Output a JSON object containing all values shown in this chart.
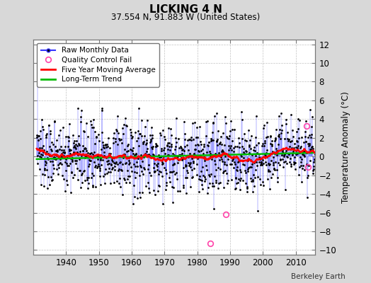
{
  "title": "LICKING 4 N",
  "subtitle": "37.554 N, 91.883 W (United States)",
  "ylabel": "Temperature Anomaly (°C)",
  "credit": "Berkeley Earth",
  "ylim": [
    -10.5,
    12.5
  ],
  "yticks": [
    -10,
    -8,
    -6,
    -4,
    -2,
    0,
    2,
    4,
    6,
    8,
    10,
    12
  ],
  "xlim": [
    1930,
    2016
  ],
  "xticks": [
    1940,
    1950,
    1960,
    1970,
    1980,
    1990,
    2000,
    2010
  ],
  "bg_color": "#d8d8d8",
  "plot_bg_color": "#ffffff",
  "raw_line_color": "#3333ff",
  "raw_dot_color": "#000000",
  "qc_color": "#ff44aa",
  "ma_color": "#ff0000",
  "trend_color": "#00bb00",
  "seed": 137,
  "start_year": 1931,
  "end_year": 2015,
  "noise_std": 1.9,
  "long_term_slope": 0.005,
  "long_term_intercept": 0.15,
  "ma_halfwindow": 30,
  "qc_fails": [
    {
      "year": 1984.0,
      "value": -9.3
    },
    {
      "year": 1988.75,
      "value": -6.2
    },
    {
      "year": 2013.25,
      "value": 3.3
    },
    {
      "year": 2013.75,
      "value": -1.1
    }
  ]
}
